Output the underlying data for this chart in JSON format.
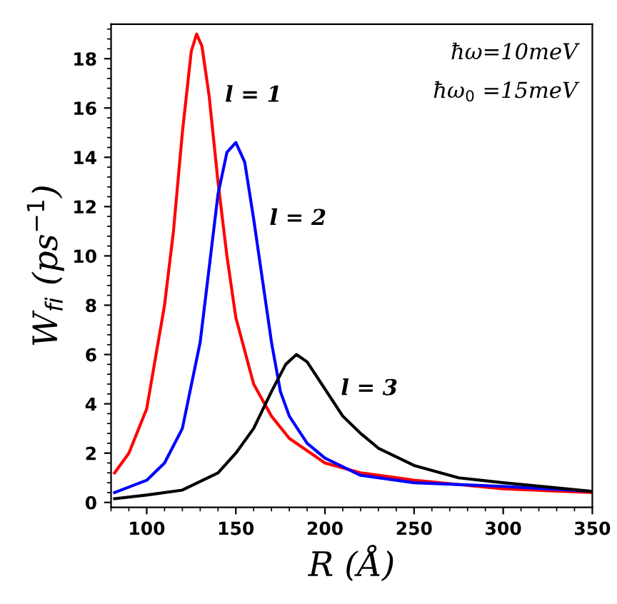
{
  "chart_data": {
    "type": "line",
    "xlabel": "R (Å)",
    "ylabel": "W$_{fi}$ (ps$^{−1}$)",
    "xlim": [
      80,
      350
    ],
    "xticks": [
      100,
      150,
      200,
      250,
      300,
      350
    ],
    "ylim": [
      -0.2,
      19.4
    ],
    "yticks": [
      0,
      2,
      4,
      6,
      8,
      10,
      12,
      14,
      16,
      18
    ],
    "grid": false,
    "legend": false,
    "marker": "none",
    "line_style": "solid",
    "series": [
      {
        "name": "l = 1",
        "color": "#ff0000",
        "x": [
          82,
          90,
          100,
          110,
          115,
          120,
          125,
          128,
          131,
          135,
          140,
          145,
          150,
          160,
          170,
          180,
          200,
          220,
          250,
          300,
          350
        ],
        "values": [
          1.2,
          2.0,
          3.8,
          8,
          11,
          15,
          18.3,
          19,
          18.5,
          16.5,
          13,
          10,
          7.5,
          4.8,
          3.5,
          2.6,
          1.6,
          1.2,
          0.9,
          0.55,
          0.4
        ]
      },
      {
        "name": "l = 2",
        "color": "#0000ff",
        "x": [
          82,
          100,
          110,
          120,
          130,
          135,
          140,
          145,
          150,
          155,
          160,
          165,
          170,
          175,
          180,
          190,
          200,
          220,
          250,
          300,
          350
        ],
        "values": [
          0.4,
          0.9,
          1.6,
          3,
          6.5,
          9.5,
          12.5,
          14.2,
          14.6,
          13.8,
          11.5,
          9,
          6.5,
          4.5,
          3.5,
          2.4,
          1.8,
          1.1,
          0.8,
          0.65,
          0.45
        ]
      },
      {
        "name": "l = 3",
        "color": "#000000",
        "x": [
          82,
          100,
          120,
          140,
          150,
          160,
          170,
          178,
          184,
          190,
          200,
          210,
          220,
          230,
          250,
          275,
          300,
          350
        ],
        "values": [
          0.15,
          0.3,
          0.5,
          1.2,
          2,
          3,
          4.5,
          5.6,
          6,
          5.7,
          4.6,
          3.5,
          2.8,
          2.2,
          1.5,
          1.0,
          0.8,
          0.45
        ]
      }
    ],
    "annotations": [
      "ħω=10meV",
      "ħω$_{0}$ =15meV"
    ]
  }
}
